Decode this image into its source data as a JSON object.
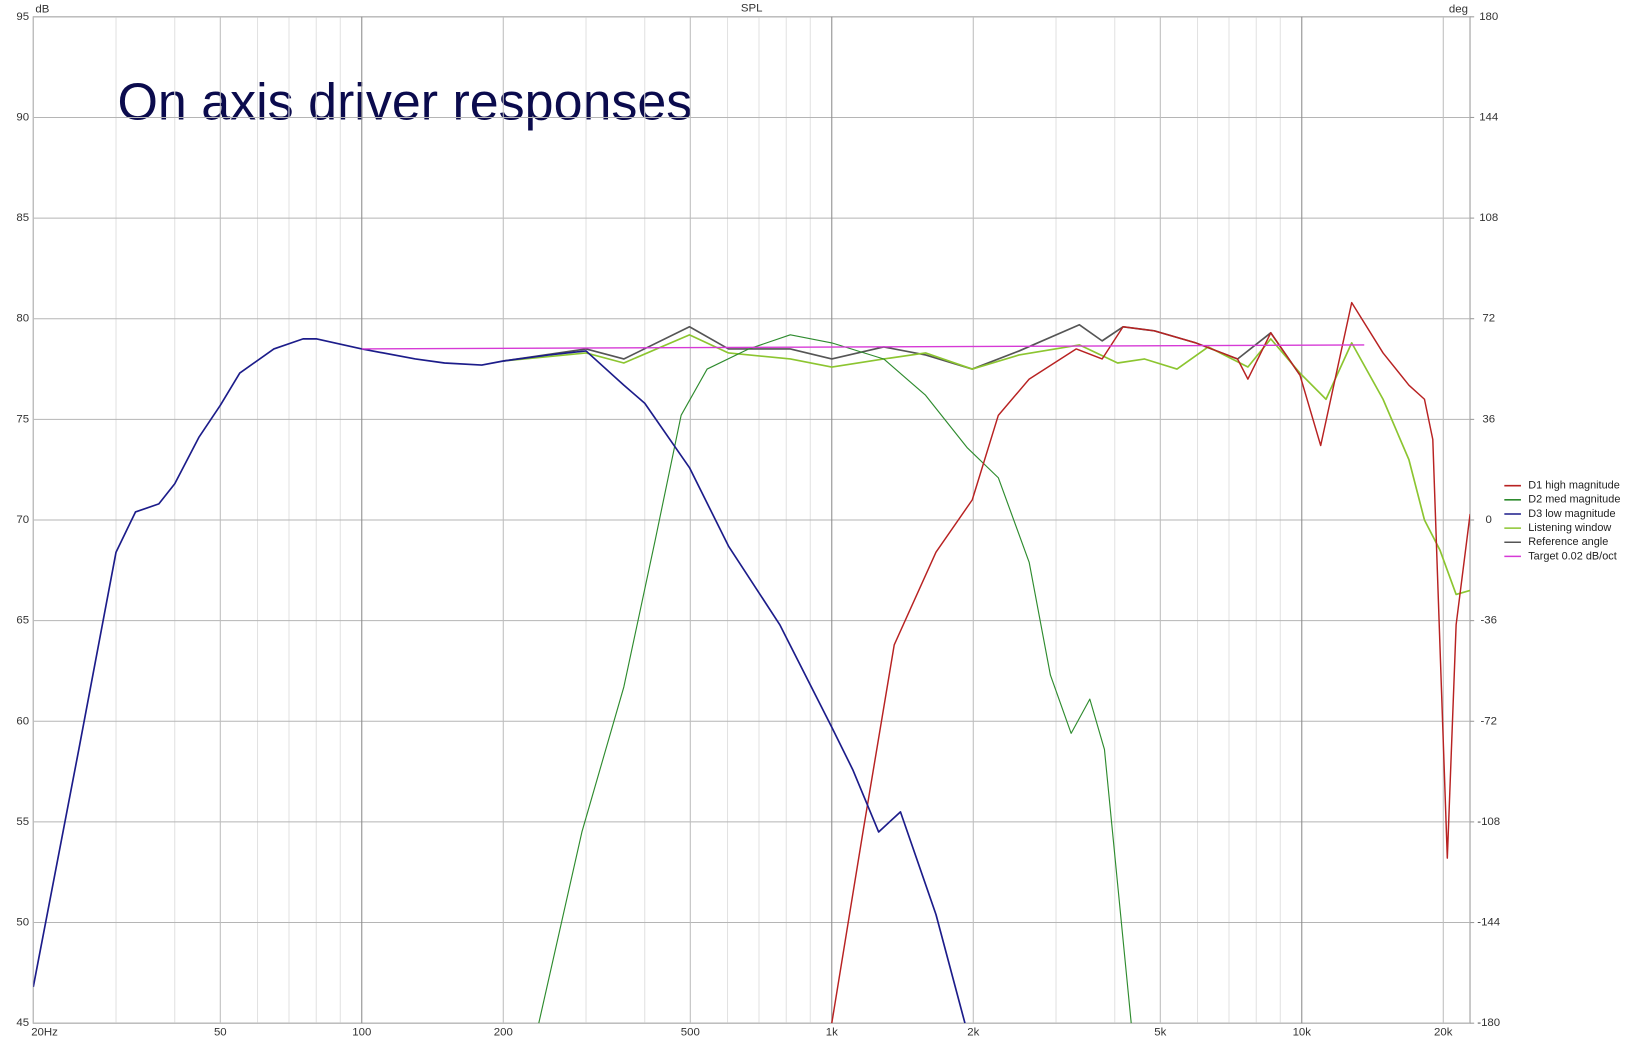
{
  "chart_data": {
    "type": "line",
    "title": "On axis driver responses",
    "subtitle": "SPL",
    "ylabel": "dB",
    "y2label": "deg",
    "xscale": "log",
    "xlim": [
      20,
      22800
    ],
    "ylim": [
      45,
      95
    ],
    "y2lim": [
      -180,
      180
    ],
    "xticks": [
      {
        "value": 20,
        "label": "20Hz"
      },
      50,
      100,
      200,
      500,
      {
        "value": 1000,
        "label": "1k"
      },
      {
        "value": 2000,
        "label": "2k"
      },
      {
        "value": 5000,
        "label": "5k"
      },
      {
        "value": 10000,
        "label": "10k"
      },
      {
        "value": 20000,
        "label": "20k"
      }
    ],
    "xminorticks": [
      30,
      40,
      60,
      70,
      80,
      90,
      300,
      400,
      600,
      700,
      800,
      900,
      3000,
      4000,
      6000,
      7000,
      8000,
      9000
    ],
    "yticks": [
      45,
      50,
      55,
      60,
      65,
      70,
      75,
      80,
      85,
      90,
      95
    ],
    "y2ticks": [
      180,
      144,
      108,
      72,
      36,
      0,
      -36,
      -72,
      -108,
      -144,
      -180
    ],
    "grid": true,
    "legend": "right",
    "series": [
      {
        "name": "D1 high magnitude",
        "color": "#b82222",
        "width": 1.4,
        "x": [
          1000,
          1165,
          1358,
          1666,
          1990,
          2261,
          2630,
          3313,
          3760,
          4166,
          4854,
          5948,
          7300,
          7680,
          8590,
          9910,
          10970,
          12770,
          14890,
          16900,
          18240,
          19000,
          20400,
          21300,
          22810
        ],
        "values": [
          45,
          54.5,
          63.8,
          68.4,
          71.0,
          75.2,
          77.0,
          78.5,
          78.0,
          79.6,
          79.4,
          78.8,
          78.0,
          77.0,
          79.3,
          77.2,
          73.7,
          80.8,
          78.3,
          76.7,
          76.0,
          74.0,
          53.2,
          64.8,
          70.3
        ]
      },
      {
        "name": "D2 med magnitude",
        "color": "#2e8b2e",
        "width": 1.1,
        "x": [
          238,
          294,
          361,
          421,
          478,
          543,
          666,
          816,
          1000,
          1290,
          1583,
          1940,
          2261,
          2630,
          2918,
          3230,
          3540,
          3803,
          4057,
          4336
        ],
        "values": [
          45,
          54.5,
          61.7,
          69.0,
          75.2,
          77.5,
          78.5,
          79.2,
          78.8,
          78.0,
          76.2,
          73.6,
          72.1,
          67.9,
          62.3,
          59.4,
          61.1,
          58.6,
          51.9,
          45
        ]
      },
      {
        "name": "D3 low magnitude",
        "color": "#1c1c8a",
        "width": 1.6,
        "x": [
          20,
          25,
          30,
          33,
          37,
          40,
          45,
          50,
          55,
          65,
          75,
          80,
          100,
          130,
          150,
          180,
          200,
          250,
          300,
          361,
          400,
          498,
          603,
          775,
          1000,
          1108,
          1258,
          1400,
          1666,
          1920
        ],
        "values": [
          46.8,
          58.6,
          68.4,
          70.4,
          70.8,
          71.8,
          74.1,
          75.7,
          77.3,
          78.5,
          79.0,
          79.0,
          78.5,
          78.0,
          77.8,
          77.7,
          77.9,
          78.2,
          78.4,
          76.7,
          75.8,
          72.6,
          68.7,
          64.8,
          59.7,
          57.6,
          54.5,
          55.5,
          50.4,
          45
        ]
      },
      {
        "name": "Listening window",
        "color": "#8cc530",
        "width": 1.6,
        "x": [
          200,
          300,
          361,
          498,
          603,
          816,
          1000,
          1290,
          1583,
          1990,
          2504,
          3364,
          4057,
          4627,
          5426,
          6322,
          7680,
          8590,
          9910,
          11260,
          12770,
          14890,
          16900,
          18240,
          19680,
          21300,
          22810
        ],
        "values": [
          77.9,
          78.3,
          77.8,
          79.2,
          78.3,
          78.0,
          77.6,
          78.0,
          78.3,
          77.5,
          78.2,
          78.7,
          77.8,
          78.0,
          77.5,
          78.6,
          77.6,
          79.0,
          77.3,
          76.0,
          78.8,
          76.0,
          73.0,
          70.0,
          68.5,
          66.3,
          66.5
        ]
      },
      {
        "name": "Reference angle",
        "color": "#555555",
        "width": 1.6,
        "x": [
          200,
          300,
          361,
          498,
          603,
          816,
          1000,
          1290,
          1583,
          1990,
          2504,
          3364,
          3760,
          4166,
          4854,
          5948,
          7300,
          8590,
          9910
        ],
        "values": [
          77.9,
          78.5,
          78.0,
          79.6,
          78.5,
          78.5,
          78.0,
          78.6,
          78.2,
          77.5,
          78.4,
          79.7,
          78.9,
          79.6,
          79.4,
          78.8,
          78.0,
          79.3,
          77.2
        ]
      },
      {
        "name": "Target 0.02 dB/oct",
        "color": "#d63ad6",
        "width": 1.3,
        "x": [
          100,
          13580
        ],
        "values": [
          78.5,
          78.7
        ]
      }
    ]
  }
}
